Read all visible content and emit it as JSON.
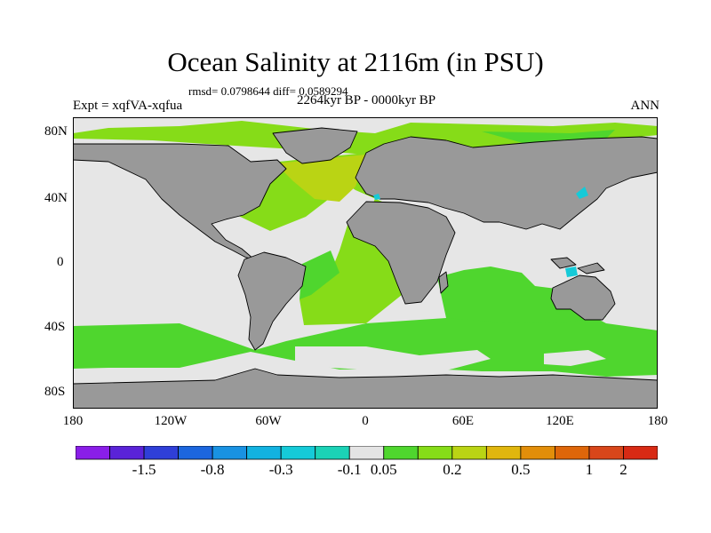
{
  "header": {
    "title": "Ocean Salinity at 2116m (in PSU)",
    "stats": "rmsd= 0.0798644 diff= 0.0589294",
    "period": "2264kyr BP - 0000kyr BP",
    "experiment": "Expt = xqfVA-xqfua",
    "season": "ANN"
  },
  "axes": {
    "y_ticks": [
      "80N",
      "40N",
      "0",
      "40S",
      "80S"
    ],
    "x_ticks": [
      "180",
      "120W",
      "60W",
      "0",
      "60E",
      "120E",
      "180"
    ]
  },
  "colorbar": {
    "colors": [
      "#8a1ee8",
      "#5a23d8",
      "#2f3fd8",
      "#1c66de",
      "#1992e2",
      "#12b2e0",
      "#15cad8",
      "#1bd2b6",
      "#e4e4e4",
      "#4fd62e",
      "#86dc18",
      "#bad414",
      "#e0b60e",
      "#e28e0a",
      "#de660a",
      "#d8461a",
      "#d82a14"
    ],
    "labels": [
      "-1.5",
      "-0.8",
      "-0.3",
      "-0.1",
      "0.05",
      "0.2",
      "0.5",
      "1",
      "2"
    ]
  },
  "colors": {
    "land": "#999999",
    "neutral": "#e6e6e6",
    "light_green": "#86dc18",
    "mid_green": "#4fd62e",
    "yellow_green": "#bad414",
    "cyan": "#15cad8"
  }
}
